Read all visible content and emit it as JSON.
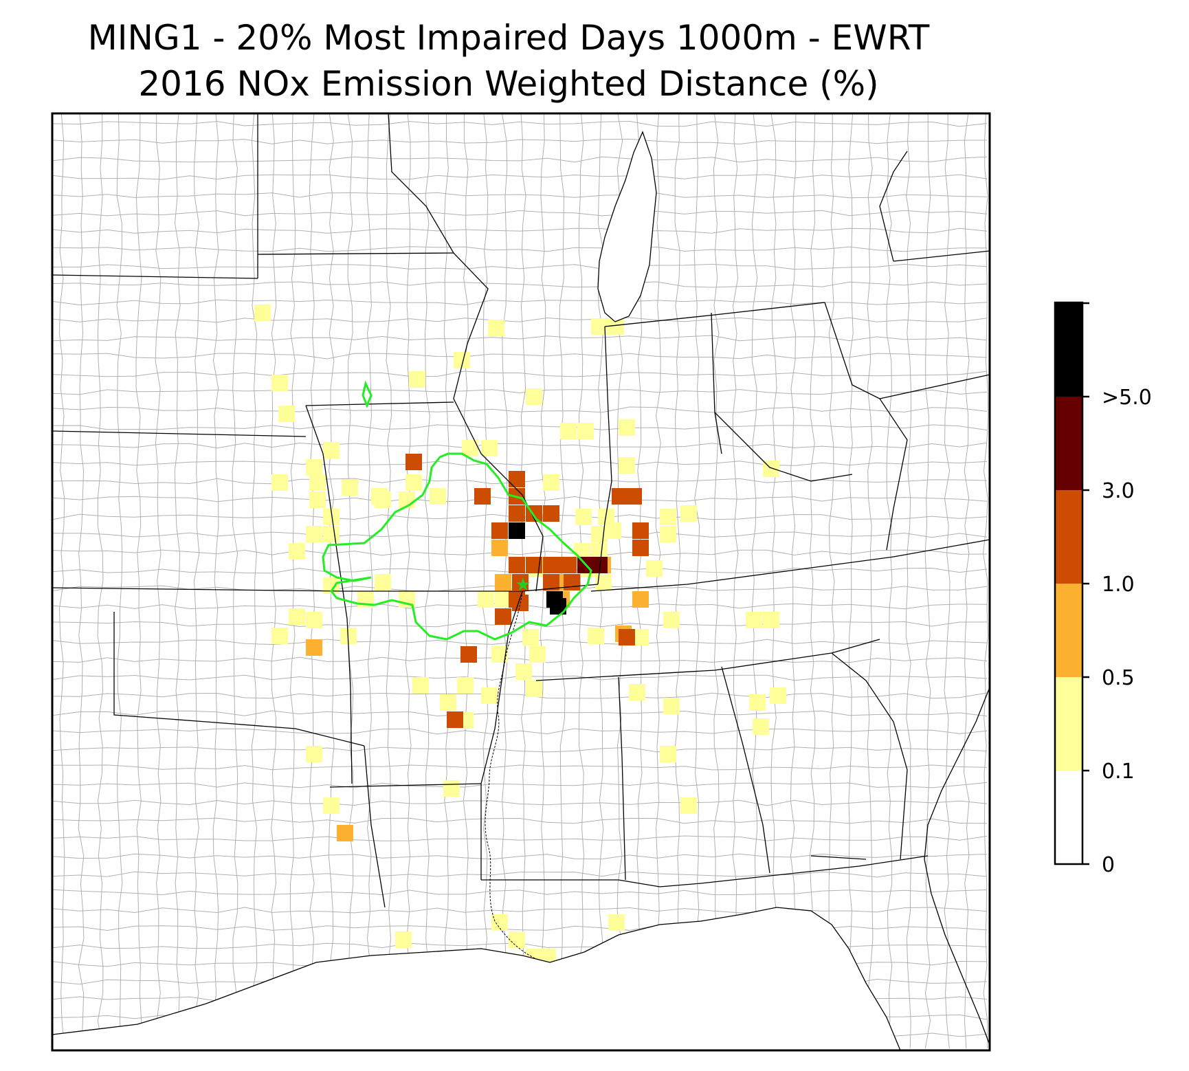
{
  "title": {
    "line1": "MING1 - 20% Most Impaired Days 1000m - EWRT",
    "line2": "2016 NOx Emission Weighted Distance (%)"
  },
  "colors": {
    "bin_0_01": "#ffffff",
    "bin_01_05": "#ffff99",
    "bin_05_10": "#fdb130",
    "bin_10_30": "#cc4c02",
    "bin_30_50": "#660000",
    "bin_gt50": "#000000",
    "contour": "#22ee22",
    "site_marker": "#22cc22",
    "county_lines": "#aaaaaa",
    "state_lines": "#000000"
  },
  "colorbar": {
    "tick_labels": [
      "0",
      "0.1",
      "0.5",
      "1.0",
      "3.0",
      ">5.0"
    ],
    "bins": [
      "0-0.1",
      "0.1-0.5",
      "0.5-1.0",
      "1.0-3.0",
      "3.0-5.0",
      ">5.0"
    ]
  },
  "map": {
    "site_marker_icon": "star-icon"
  }
}
